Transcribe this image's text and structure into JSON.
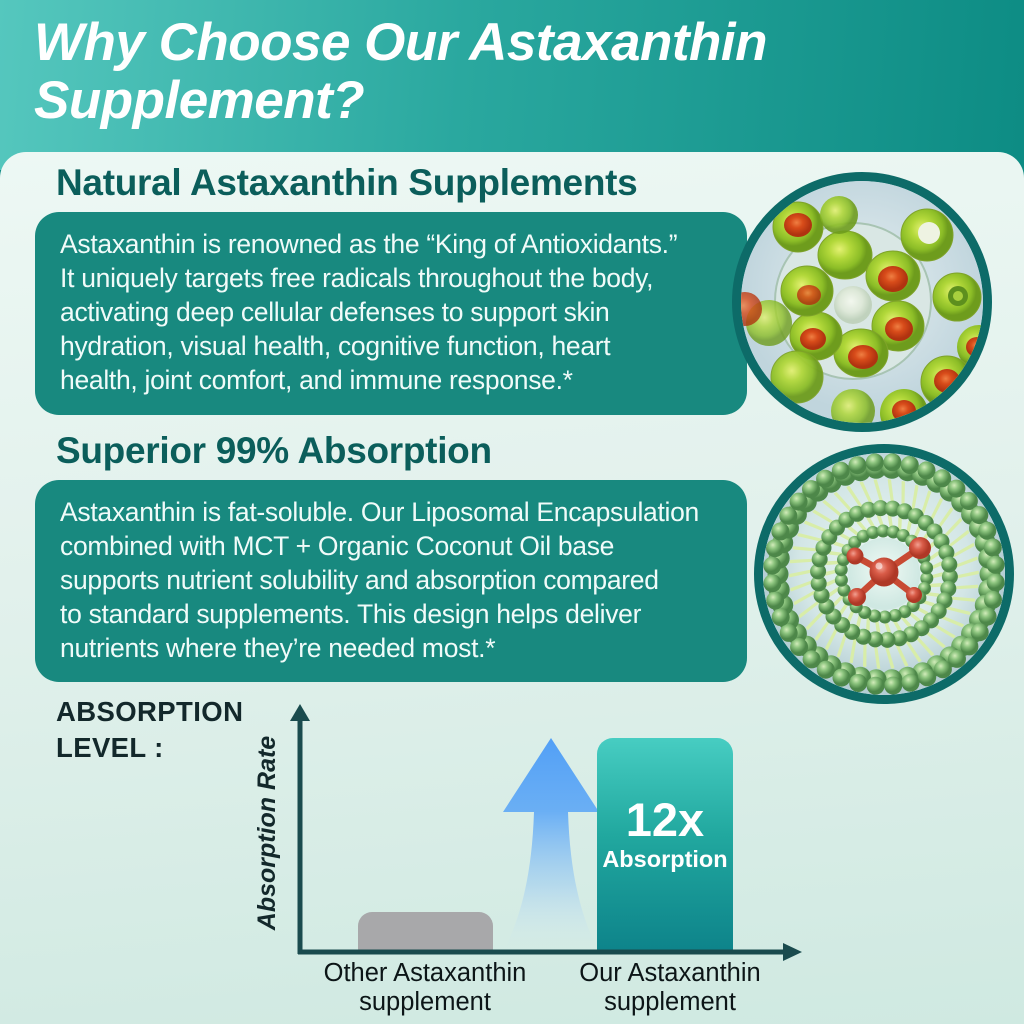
{
  "header": {
    "title": "Why Choose Our Astaxanthin Supplement?"
  },
  "sections": [
    {
      "heading": "Natural Astaxanthin Supplements",
      "body": "Astaxanthin is renowned as the “King of Antioxidants.”\nIt uniquely targets free radicals throughout the body,\nactivating deep cellular defenses to support skin\nhydration, visual health, cognitive function, heart\nhealth, joint comfort, and immune response.*",
      "image_alt": "Microscope photo of green Haematococcus algae cells with red astaxanthin cores"
    },
    {
      "heading": "Superior 99% Absorption",
      "body": "Astaxanthin is fat-soluble. Our Liposomal Encapsulation\ncombined with MCT + Organic Coconut Oil base\nsupports nutrient solubility and absorption compared\nto standard supplements. This design helps deliver\nnutrients where they’re needed most.*",
      "image_alt": "3D illustration of a liposome bilayer sphere of green lipids with a red nutrient molecule inside"
    }
  ],
  "chart_data": {
    "type": "bar",
    "title": "ABSORPTION LEVEL :",
    "ylabel": "Absorption Rate",
    "xlabel": "",
    "categories": [
      "Other Astaxanthin supplement",
      "Our Astaxanthin supplement"
    ],
    "series": [
      {
        "name": "Absorption Rate (relative)",
        "values": [
          1,
          12
        ]
      }
    ],
    "annotation": {
      "value": "12x",
      "label": "Absorption"
    },
    "bar_colors": [
      "#a8a8aa",
      "linear-gradient #47cdc2 → #0d838a"
    ],
    "emphasis": "blue upward arrow between bars",
    "ylim": [
      0,
      13
    ],
    "grid": false,
    "legend": "none"
  },
  "colors": {
    "header_gradient_left": "#55c7be",
    "header_gradient_right": "#0d8c84",
    "panel_background_top": "#edf8f4",
    "panel_background_bottom": "#cfe9e1",
    "text_box_teal": "#18897f",
    "section_heading_teal": "#0b5e5b",
    "circle_ring_teal": "#0d6b68",
    "axis_dark_teal": "#1a4b4e",
    "arrow_blue": "#4e9df6",
    "bar_gray": "#a8a8aa",
    "bar_teal_top": "#47cdc2",
    "bar_teal_bottom": "#0d838a",
    "title_white": "#ffffff"
  }
}
